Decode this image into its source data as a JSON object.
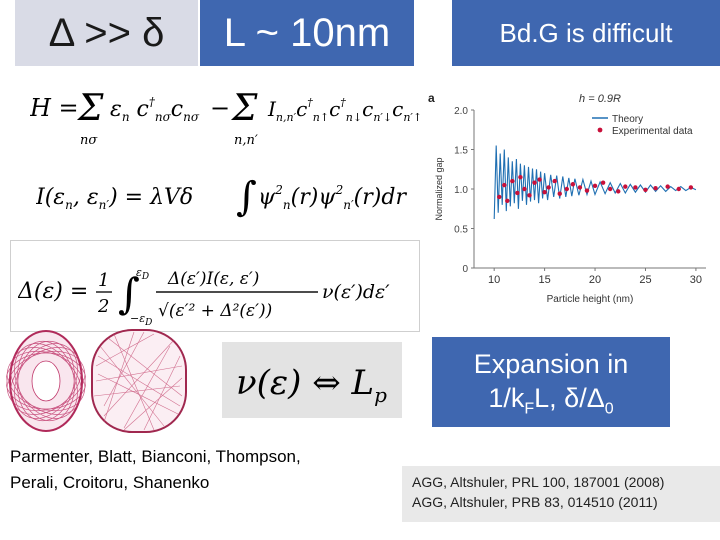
{
  "header": {
    "delta_compare": "Δ >> δ",
    "length_scale": "L ~ 10nm",
    "bdg_title": "Bd.G is difficult"
  },
  "equations": {
    "hamiltonian": "H = Σ ε c†c − Σ I c†c†cc",
    "interaction": "I(ε, ε′) = λVδ ∫ ψ²ψ² dr",
    "gap": "Δ(ε) = ½ ∫ Δ(ε′)I(ε,ε′) / √(ε′² + Δ²(ε′)) ν(ε′) dε′"
  },
  "dos_box": {
    "text": "ν(ε) ⇔ Lp"
  },
  "expansion": {
    "line1": "Expansion in",
    "line2": "1/kFL, δ/Δ0"
  },
  "refs_left": {
    "line1": "Parmenter, Blatt, Bianconi, Thompson,",
    "line2": "Perali, Croitoru, Shanenko"
  },
  "refs_right": {
    "line1": "AGG, Altshuler, PRL 100, 187001 (2008)",
    "line2": "AGG, Altshuler, PRB  83, 014510 (2011)"
  },
  "chart_data": {
    "type": "line",
    "panel_label": "a",
    "title": "h = 0.9R",
    "xlabel": "Particle height (nm)",
    "ylabel": "Normalized gap",
    "xlim": [
      8,
      31
    ],
    "ylim": [
      0,
      2.0
    ],
    "xticks": [
      10,
      15,
      20,
      25,
      30
    ],
    "yticks": [
      0,
      0.5,
      1.0,
      1.5,
      2.0
    ],
    "ytick_labels": [
      "0",
      "0.5",
      "1.0",
      "1.5",
      "2.0"
    ],
    "legend": [
      "Theory",
      "Experimental data"
    ],
    "legend_position": "top-right",
    "colors": {
      "theory": "#1f6fb2",
      "experiment": "#c8103a"
    },
    "series": [
      {
        "name": "Theory",
        "x": [
          10.0,
          10.2,
          10.4,
          10.6,
          10.8,
          11.0,
          11.2,
          11.4,
          11.6,
          11.8,
          12.0,
          12.2,
          12.4,
          12.6,
          12.8,
          13.0,
          13.2,
          13.4,
          13.6,
          13.8,
          14.0,
          14.2,
          14.4,
          14.6,
          14.8,
          15.0,
          15.3,
          15.6,
          15.9,
          16.2,
          16.5,
          16.8,
          17.1,
          17.4,
          17.7,
          18.0,
          18.4,
          18.8,
          19.2,
          19.6,
          20.0,
          20.5,
          21.0,
          21.5,
          22.0,
          22.5,
          23.0,
          23.5,
          24.0,
          24.5,
          25.0,
          25.5,
          26.0,
          26.5,
          27.0,
          27.5,
          28.0,
          28.5,
          29.0,
          29.5,
          30.0
        ],
        "y": [
          0.62,
          1.55,
          0.7,
          1.45,
          0.8,
          1.5,
          0.72,
          1.4,
          0.78,
          1.35,
          0.82,
          1.38,
          0.75,
          1.32,
          0.85,
          1.3,
          0.8,
          1.28,
          0.84,
          1.26,
          0.86,
          1.25,
          0.82,
          1.22,
          0.88,
          1.2,
          0.86,
          1.18,
          0.9,
          1.17,
          0.88,
          1.16,
          0.9,
          1.14,
          0.91,
          1.13,
          0.92,
          1.12,
          0.93,
          1.1,
          0.93,
          1.09,
          0.94,
          1.08,
          0.95,
          1.07,
          0.95,
          1.06,
          0.96,
          1.05,
          0.96,
          1.05,
          0.97,
          1.04,
          0.97,
          1.03,
          0.98,
          1.03,
          0.98,
          1.02,
          0.99
        ]
      },
      {
        "name": "Experimental data",
        "x": [
          10.5,
          11.0,
          11.3,
          11.8,
          12.3,
          12.6,
          13.0,
          13.5,
          14.0,
          14.5,
          15.0,
          15.4,
          16.0,
          16.5,
          17.2,
          17.8,
          18.5,
          19.2,
          20.0,
          20.8,
          21.5,
          22.3,
          23.0,
          24.0,
          25.0,
          26.0,
          27.2,
          28.3,
          29.5
        ],
        "y": [
          0.9,
          1.05,
          0.85,
          1.1,
          0.95,
          1.15,
          1.0,
          0.92,
          1.08,
          1.12,
          0.96,
          1.02,
          1.1,
          0.94,
          1.0,
          1.06,
          1.02,
          0.98,
          1.04,
          1.08,
          1.0,
          0.97,
          1.03,
          1.02,
          0.99,
          1.01,
          1.03,
          1.0,
          1.02
        ]
      }
    ]
  }
}
